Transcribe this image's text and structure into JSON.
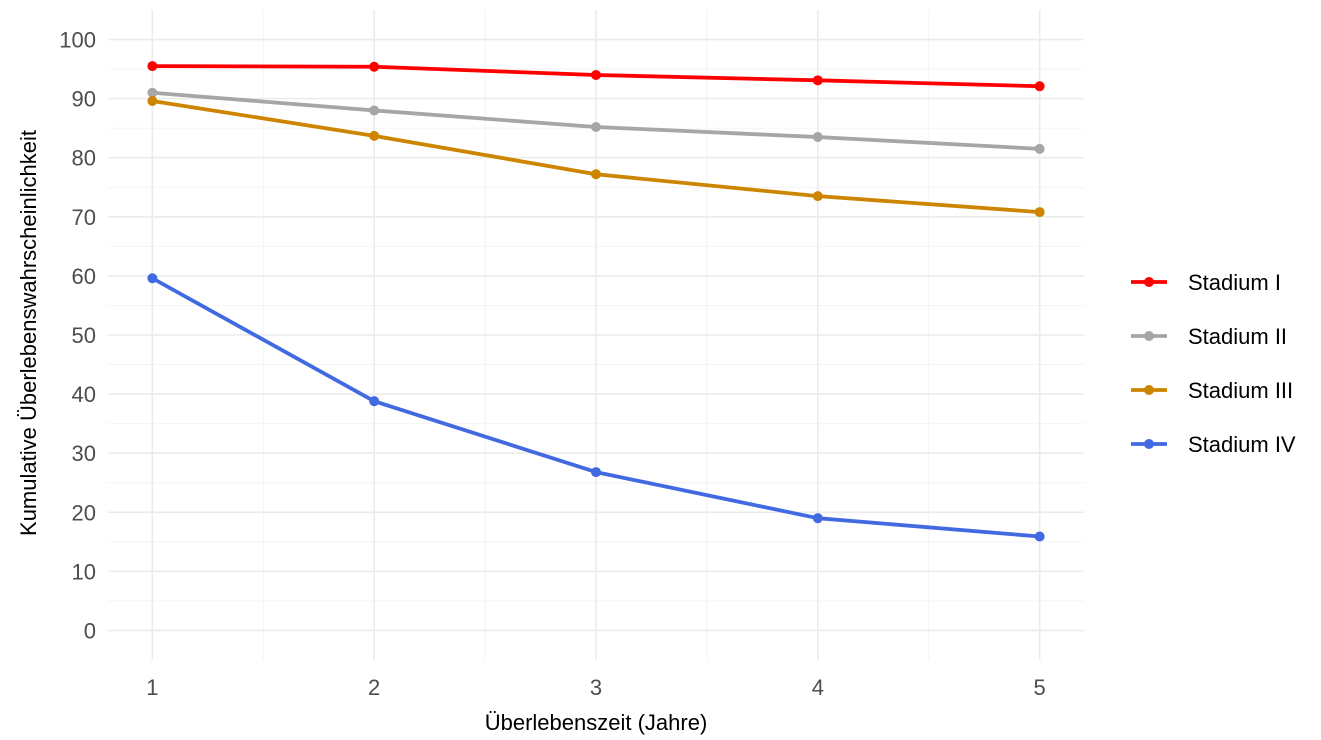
{
  "chart_data": {
    "type": "line",
    "title": "",
    "xlabel": "Überlebenszeit (Jahre)",
    "ylabel": "Kumulative Überlebenswahrscheinlichkeit",
    "x": [
      1,
      2,
      3,
      4,
      5
    ],
    "xticks": [
      1,
      2,
      3,
      4,
      5
    ],
    "yticks": [
      0,
      10,
      20,
      30,
      40,
      50,
      60,
      70,
      80,
      90,
      100
    ],
    "xlim": [
      0.8,
      5.2
    ],
    "ylim": [
      -5,
      105
    ],
    "grid": true,
    "legend_position": "right",
    "series": [
      {
        "name": "Stadium I",
        "color": "#ff0000",
        "values": [
          95.5,
          95.4,
          94.0,
          93.1,
          92.1
        ]
      },
      {
        "name": "Stadium II",
        "color": "#a6a6a6",
        "values": [
          91.0,
          88.0,
          85.2,
          83.5,
          81.5
        ]
      },
      {
        "name": "Stadium III",
        "color": "#cd8500",
        "values": [
          89.6,
          83.7,
          77.2,
          73.5,
          70.8
        ]
      },
      {
        "name": "Stadium IV",
        "color": "#4169e1",
        "values": [
          59.6,
          38.8,
          26.8,
          19.0,
          15.9
        ]
      }
    ]
  }
}
